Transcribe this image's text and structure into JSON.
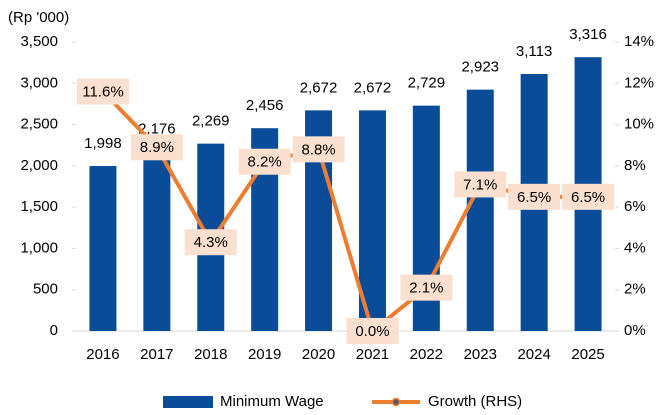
{
  "chart_data": {
    "type": "bar_line",
    "y_unit_label": "(Rp '000)",
    "categories": [
      "2016",
      "2017",
      "2018",
      "2019",
      "2020",
      "2021",
      "2022",
      "2023",
      "2024",
      "2025"
    ],
    "series": [
      {
        "name": "Minimum Wage",
        "type": "bar",
        "color": "#0b4c98",
        "values": [
          1998,
          2176,
          2269,
          2456,
          2672,
          2672,
          2729,
          2923,
          3113,
          3316
        ],
        "value_labels": [
          "1,998",
          "2,176",
          "2,269",
          "2,456",
          "2,672",
          "2,672",
          "2,729",
          "2,923",
          "3,113",
          "3,316"
        ]
      },
      {
        "name": "Growth (RHS)",
        "type": "line",
        "axis": "y2",
        "color": "#ed7d31",
        "values": [
          11.6,
          8.9,
          4.3,
          8.2,
          8.8,
          0.0,
          2.1,
          7.1,
          6.5,
          6.5
        ],
        "value_labels": [
          "11.6%",
          "8.9%",
          "4.3%",
          "8.2%",
          "8.8%",
          "0.0%",
          "2.1%",
          "7.1%",
          "6.5%",
          "6.5%"
        ]
      }
    ],
    "ylim": [
      0,
      3500
    ],
    "yticks": [
      0,
      500,
      {
        "value": 1000,
        "label": "1,000"
      },
      {
        "value": 1500,
        "label": "1,500"
      },
      {
        "value": 2000,
        "label": "2,000"
      },
      {
        "value": 2500,
        "label": "2,500"
      },
      {
        "value": 3000,
        "label": "3,000"
      },
      {
        "value": 3500,
        "label": "3,500"
      }
    ],
    "y2lim": [
      0,
      14
    ],
    "y2ticks": [
      {
        "value": 0,
        "label": "0%"
      },
      {
        "value": 2,
        "label": "2%"
      },
      {
        "value": 4,
        "label": "4%"
      },
      {
        "value": 6,
        "label": "6%"
      },
      {
        "value": 8,
        "label": "8%"
      },
      {
        "value": 10,
        "label": "10%"
      },
      {
        "value": 12,
        "label": "12%"
      },
      {
        "value": 14,
        "label": "14%"
      }
    ],
    "grid": false,
    "legend": "bottom"
  }
}
